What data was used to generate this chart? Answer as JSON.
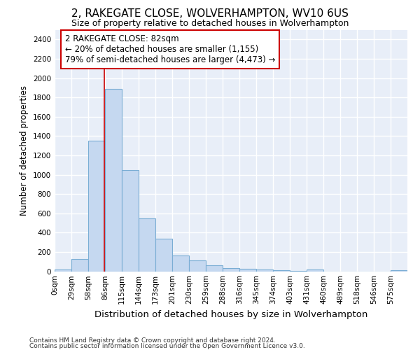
{
  "title": "2, RAKEGATE CLOSE, WOLVERHAMPTON, WV10 6US",
  "subtitle": "Size of property relative to detached houses in Wolverhampton",
  "xlabel": "Distribution of detached houses by size in Wolverhampton",
  "ylabel": "Number of detached properties",
  "bar_color": "#c5d8f0",
  "bar_edge_color": "#7aadd4",
  "ax_background_color": "#e8eef8",
  "fig_background_color": "#ffffff",
  "grid_color": "#ffffff",
  "categories": [
    "0sqm",
    "29sqm",
    "58sqm",
    "86sqm",
    "115sqm",
    "144sqm",
    "173sqm",
    "201sqm",
    "230sqm",
    "259sqm",
    "288sqm",
    "316sqm",
    "345sqm",
    "374sqm",
    "403sqm",
    "431sqm",
    "460sqm",
    "489sqm",
    "518sqm",
    "546sqm",
    "575sqm"
  ],
  "values": [
    15,
    130,
    1350,
    1890,
    1045,
    545,
    335,
    160,
    110,
    60,
    35,
    28,
    15,
    10,
    5,
    20,
    0,
    0,
    0,
    0,
    12
  ],
  "bin_width": 29,
  "vline_x": 86,
  "vline_color": "#cc0000",
  "annotation_line1": "2 RAKEGATE CLOSE: 82sqm",
  "annotation_line2": "← 20% of detached houses are smaller (1,155)",
  "annotation_line3": "79% of semi-detached houses are larger (4,473) →",
  "annotation_box_facecolor": "#ffffff",
  "annotation_box_edgecolor": "#cc0000",
  "ylim": [
    0,
    2500
  ],
  "yticks": [
    0,
    200,
    400,
    600,
    800,
    1000,
    1200,
    1400,
    1600,
    1800,
    2000,
    2200,
    2400
  ],
  "footer1": "Contains HM Land Registry data © Crown copyright and database right 2024.",
  "footer2": "Contains public sector information licensed under the Open Government Licence v3.0.",
  "title_fontsize": 11,
  "subtitle_fontsize": 9,
  "xlabel_fontsize": 9.5,
  "ylabel_fontsize": 8.5,
  "tick_fontsize": 7.5,
  "footer_fontsize": 6.5,
  "annotation_fontsize": 8.5
}
